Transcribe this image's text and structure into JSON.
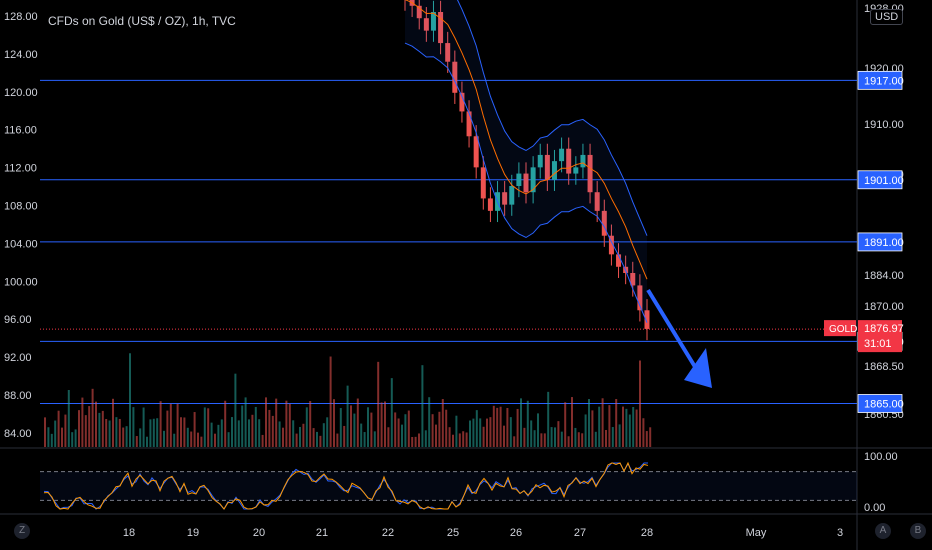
{
  "title": "CFDs on Gold (US$ / OZ), 1h, TVC",
  "currency_button": "USD",
  "bottom_buttons": {
    "left": "Z",
    "a": "A",
    "b": "B"
  },
  "colors": {
    "level_line": "#2962ff",
    "up_candle": "#26a69a",
    "down_candle": "#ef5350",
    "bb_band": "#2962ff",
    "bb_basis": "#ff6d00",
    "stoch_k": "#2962ff",
    "stoch_d": "#ff9800",
    "arrow": "#2962ff",
    "price_tag": "#f23645"
  },
  "chart_data": {
    "type": "candlestick",
    "symbol": "GOLD",
    "left_axis_ticks": [
      "128.00",
      "124.00",
      "120.00",
      "116.00",
      "112.00",
      "108.00",
      "104.00",
      "100.00",
      "96.00",
      "92.00",
      "88.00",
      "84.00"
    ],
    "right_axis_ticks": [
      "1928.00",
      "1920.00",
      "1910.00",
      "1900.00",
      "1884.00",
      "1870.00",
      "1868.50",
      "1860.50"
    ],
    "x_tick_labels": [
      "18",
      "19",
      "20",
      "21",
      "22",
      "25",
      "26",
      "27",
      "28",
      "May",
      "3"
    ],
    "horizontal_levels": [
      1917.0,
      1901.0,
      1891.0,
      1875.0,
      1865.0
    ],
    "level_labels": [
      "1917.00",
      "1901.00",
      "1891.00",
      "1875.00",
      "1865.00"
    ],
    "current_price": {
      "label": "GOLD",
      "value": "1876.97",
      "countdown": "31:01"
    },
    "price_series_close": [
      1930,
      1929,
      1927,
      1925,
      1928,
      1923,
      1920,
      1915,
      1912,
      1908,
      1903,
      1898,
      1896,
      1899,
      1897,
      1900,
      1902,
      1899,
      1903,
      1905,
      1901,
      1904,
      1906,
      1902,
      1903,
      1905,
      1899,
      1896,
      1892,
      1889,
      1887,
      1886,
      1884,
      1880,
      1877
    ],
    "stochastic": {
      "upper": "100.00",
      "lower": "0.00",
      "levels": [
        80,
        20
      ]
    },
    "annotation": "downward arrow toward 1865.00"
  }
}
